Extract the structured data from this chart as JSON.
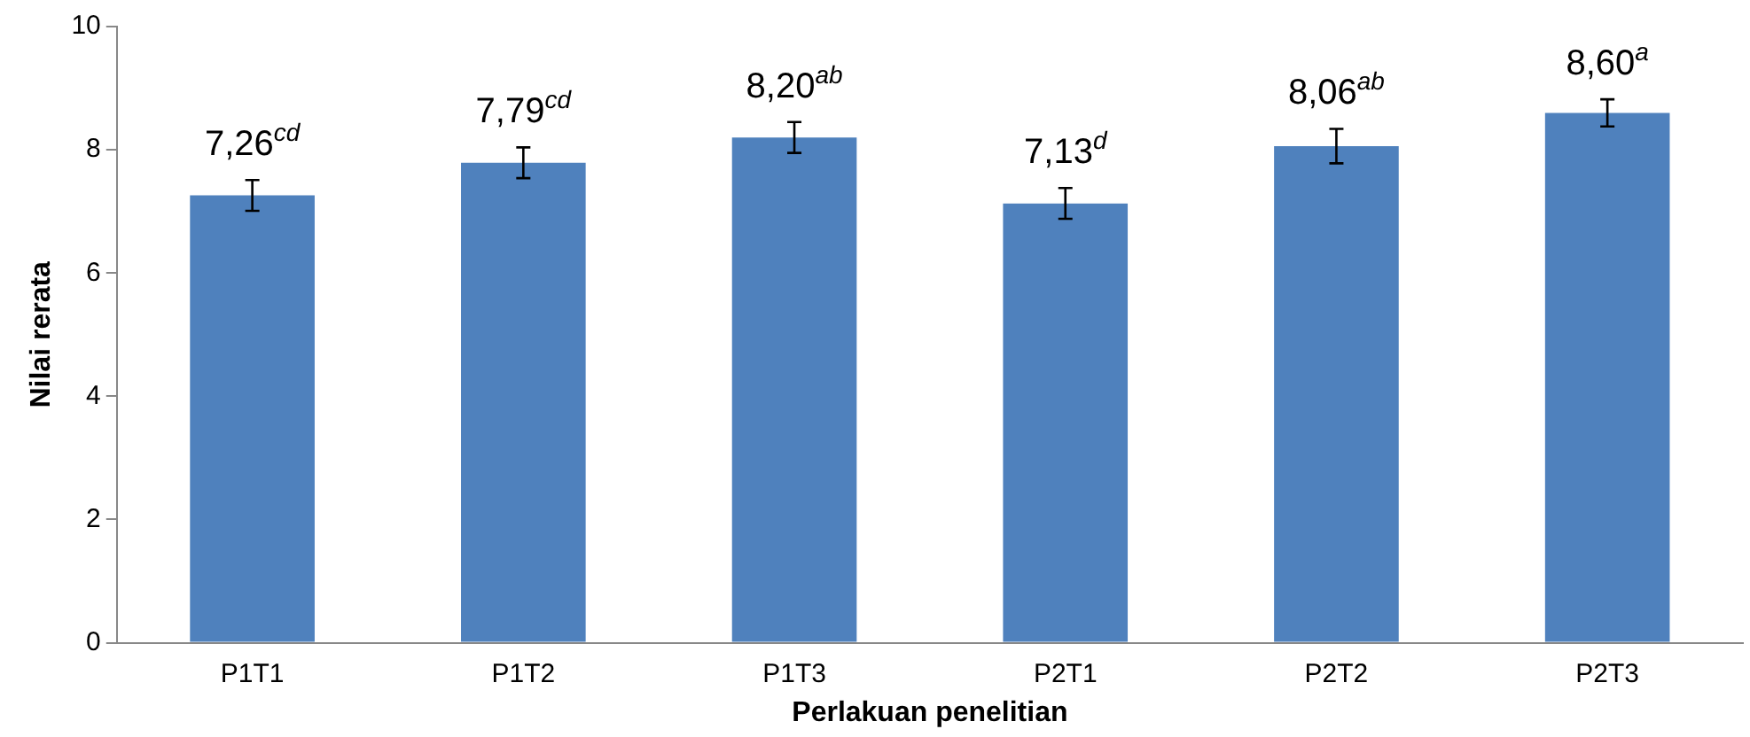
{
  "chart_data": {
    "type": "bar",
    "xlabel": "Perlakuan penelitian",
    "ylabel": "Nilai rerata",
    "categories": [
      "P1T1",
      "P1T2",
      "P1T3",
      "P2T1",
      "P2T2",
      "P2T3"
    ],
    "values": [
      7.26,
      7.79,
      8.2,
      7.13,
      8.06,
      8.6
    ],
    "errors": [
      0.25,
      0.25,
      0.25,
      0.25,
      0.28,
      0.22
    ],
    "value_labels": [
      "7,26$^{cd}$",
      "7,79$^{cd}$",
      "8,20$^{ab}$",
      "7,13$^{d}$",
      "8,06$^{ab}$",
      "8,60$^{a}$"
    ],
    "color": "#4f81bd",
    "ylim": [
      0,
      10
    ],
    "yticks": [
      0,
      2,
      4,
      6,
      8,
      10
    ],
    "grid": false,
    "legend": false
  }
}
